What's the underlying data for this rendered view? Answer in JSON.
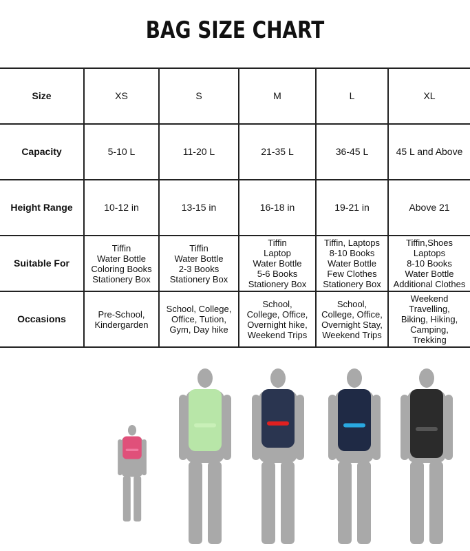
{
  "title": "BAG SIZE CHART",
  "rows": [
    {
      "label": "Size",
      "cells": [
        "XS",
        "S",
        "M",
        "L",
        "XL"
      ]
    },
    {
      "label": "Capacity",
      "cells": [
        "5-10 L",
        "11-20 L",
        "21-35 L",
        "36-45 L",
        "45 L and Above"
      ]
    },
    {
      "label": "Height Range",
      "cells": [
        "10-12 in",
        "13-15 in",
        "16-18 in",
        "19-21 in",
        "Above 21"
      ]
    },
    {
      "label": "Suitable For",
      "cells": [
        "Tiffin\nWater Bottle\nColoring Books\nStationery Box",
        "Tiffin\nWater Bottle\n2-3 Books\nStationery Box",
        "Tiffin\nLaptop\nWater Bottle\n5-6 Books\nStationery Box",
        "Tiffin, Laptops\n8-10 Books\nWater Bottle\nFew Clothes\nStationery Box",
        "Tiffin,Shoes\nLaptops\n8-10 Books\nWater Bottle\nAdditional Clothes"
      ]
    },
    {
      "label": "Occasions",
      "cells": [
        "Pre-School,\nKindergarden",
        "School, College,\nOffice, Tution,\nGym, Day hike",
        "School,\nCollege, Office,\nOvernight hike,\nWeekend Trips",
        "School,\nCollege, Office,\nOvernight Stay,\nWeekend Trips",
        "Weekend\nTravelling,\nBiking, Hiking,\nCamping,\nTrekking"
      ]
    }
  ],
  "bag_colors": [
    "#e0507a",
    "#b8e6a8",
    "#2a3550",
    "#1f2a45",
    "#2b2b2b"
  ],
  "accent_colors": [
    "#f07aa0",
    "#c9f0b8",
    "#e02020",
    "#29a8e0",
    "#555555"
  ],
  "silhouette_color": "#a9a9a9"
}
